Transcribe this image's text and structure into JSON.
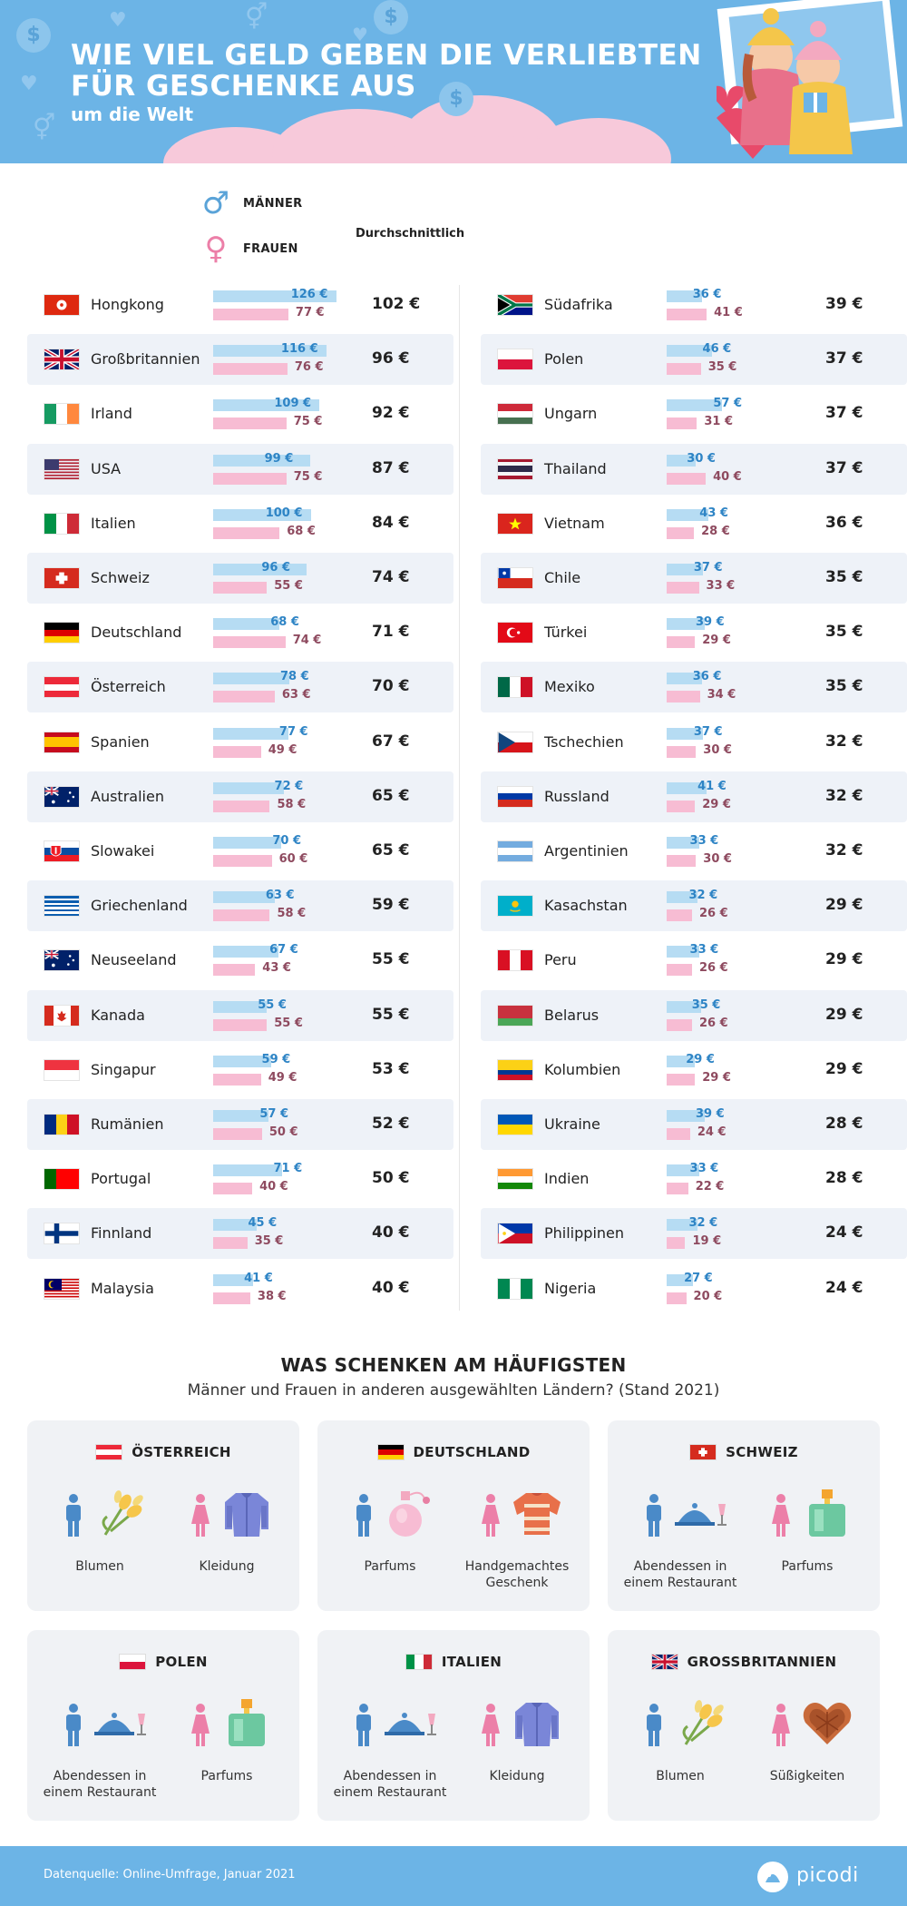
{
  "header": {
    "title_line1": "WIE VIEL GELD GEBEN DIE VERLIEBTEN",
    "title_line2": "FÜR GESCHENKE AUS",
    "subtitle": "um die Welt"
  },
  "legend": {
    "men_label": "MÄNNER",
    "women_label": "FRAUEN",
    "average_label": "Durchschnittlich",
    "men_color": "#b6dcf3",
    "women_color": "#f7bcd3"
  },
  "chart_data": {
    "type": "bar",
    "unit": "€",
    "series": [
      {
        "name": "MÄNNER",
        "color": "#b6dcf3"
      },
      {
        "name": "FRAUEN",
        "color": "#f7bcd3"
      }
    ],
    "xlim": [
      0,
      130
    ],
    "left": [
      {
        "country": "Hongkong",
        "men": 126,
        "women": 77,
        "avg": 102,
        "flag": "hongkong"
      },
      {
        "country": "Großbritannien",
        "men": 116,
        "women": 76,
        "avg": 96,
        "flag": "uk"
      },
      {
        "country": "Irland",
        "men": 109,
        "women": 75,
        "avg": 92,
        "flag": "ireland"
      },
      {
        "country": "USA",
        "men": 99,
        "women": 75,
        "avg": 87,
        "flag": "usa"
      },
      {
        "country": "Italien",
        "men": 100,
        "women": 68,
        "avg": 84,
        "flag": "italy"
      },
      {
        "country": "Schweiz",
        "men": 96,
        "women": 55,
        "avg": 74,
        "flag": "switzerland"
      },
      {
        "country": "Deutschland",
        "men": 68,
        "women": 74,
        "avg": 71,
        "flag": "germany"
      },
      {
        "country": "Österreich",
        "men": 78,
        "women": 63,
        "avg": 70,
        "flag": "austria"
      },
      {
        "country": "Spanien",
        "men": 77,
        "women": 49,
        "avg": 67,
        "flag": "spain"
      },
      {
        "country": "Australien",
        "men": 72,
        "women": 58,
        "avg": 65,
        "flag": "australia"
      },
      {
        "country": "Slowakei",
        "men": 70,
        "women": 60,
        "avg": 65,
        "flag": "slovakia"
      },
      {
        "country": "Griechenland",
        "men": 63,
        "women": 58,
        "avg": 59,
        "flag": "greece"
      },
      {
        "country": "Neuseeland",
        "men": 67,
        "women": 43,
        "avg": 55,
        "flag": "newzealand"
      },
      {
        "country": "Kanada",
        "men": 55,
        "women": 55,
        "avg": 55,
        "flag": "canada"
      },
      {
        "country": "Singapur",
        "men": 59,
        "women": 49,
        "avg": 53,
        "flag": "singapore"
      },
      {
        "country": "Rumänien",
        "men": 57,
        "women": 50,
        "avg": 52,
        "flag": "romania"
      },
      {
        "country": "Portugal",
        "men": 71,
        "women": 40,
        "avg": 50,
        "flag": "portugal"
      },
      {
        "country": "Finnland",
        "men": 45,
        "women": 35,
        "avg": 40,
        "flag": "finland"
      },
      {
        "country": "Malaysia",
        "men": 41,
        "women": 38,
        "avg": 40,
        "flag": "malaysia"
      }
    ],
    "right": [
      {
        "country": "Südafrika",
        "men": 36,
        "women": 41,
        "avg": 39,
        "flag": "southafrica"
      },
      {
        "country": "Polen",
        "men": 46,
        "women": 35,
        "avg": 37,
        "flag": "poland"
      },
      {
        "country": "Ungarn",
        "men": 57,
        "women": 31,
        "avg": 37,
        "flag": "hungary"
      },
      {
        "country": "Thailand",
        "men": 30,
        "women": 40,
        "avg": 37,
        "flag": "thailand"
      },
      {
        "country": "Vietnam",
        "men": 43,
        "women": 28,
        "avg": 36,
        "flag": "vietnam"
      },
      {
        "country": "Chile",
        "men": 37,
        "women": 33,
        "avg": 35,
        "flag": "chile"
      },
      {
        "country": "Türkei",
        "men": 39,
        "women": 29,
        "avg": 35,
        "flag": "turkey"
      },
      {
        "country": "Mexiko",
        "men": 36,
        "women": 34,
        "avg": 35,
        "flag": "mexico"
      },
      {
        "country": "Tschechien",
        "men": 37,
        "women": 30,
        "avg": 32,
        "flag": "czech"
      },
      {
        "country": "Russland",
        "men": 41,
        "women": 29,
        "avg": 32,
        "flag": "russia"
      },
      {
        "country": "Argentinien",
        "men": 33,
        "women": 30,
        "avg": 32,
        "flag": "argentina"
      },
      {
        "country": "Kasachstan",
        "men": 32,
        "women": 26,
        "avg": 29,
        "flag": "kazakhstan"
      },
      {
        "country": "Peru",
        "men": 33,
        "women": 26,
        "avg": 29,
        "flag": "peru"
      },
      {
        "country": "Belarus",
        "men": 35,
        "women": 26,
        "avg": 29,
        "flag": "belarus"
      },
      {
        "country": "Kolumbien",
        "men": 29,
        "women": 29,
        "avg": 29,
        "flag": "colombia"
      },
      {
        "country": "Ukraine",
        "men": 39,
        "women": 24,
        "avg": 28,
        "flag": "ukraine"
      },
      {
        "country": "Indien",
        "men": 33,
        "women": 22,
        "avg": 28,
        "flag": "india"
      },
      {
        "country": "Philippinen",
        "men": 32,
        "women": 19,
        "avg": 24,
        "flag": "philippines"
      },
      {
        "country": "Nigeria",
        "men": 27,
        "women": 20,
        "avg": 24,
        "flag": "nigeria"
      }
    ]
  },
  "gifts": {
    "title": "WAS SCHENKEN AM HÄUFIGSTEN",
    "subtitle": "Männer und Frauen in anderen ausgewählten Ländern? (Stand 2021)",
    "cards": [
      {
        "country": "ÖSTERREICH",
        "flag": "austria",
        "men_gift": "Blumen",
        "men_icon": "flowers-icon",
        "women_gift": "Kleidung",
        "women_icon": "jacket-icon"
      },
      {
        "country": "DEUTSCHLAND",
        "flag": "germany",
        "men_gift": "Parfums",
        "men_icon": "perfume-pink-icon",
        "women_gift": "Handgemachtes Geschenk",
        "women_icon": "sweater-icon"
      },
      {
        "country": "SCHWEIZ",
        "flag": "switzerland",
        "men_gift": "Abendessen in einem Restaurant",
        "men_icon": "dinner-icon",
        "women_gift": "Parfums",
        "women_icon": "perfume-green-icon"
      },
      {
        "country": "POLEN",
        "flag": "poland",
        "men_gift": "Abendessen in einem Restaurant",
        "men_icon": "dinner-icon",
        "women_gift": "Parfums",
        "women_icon": "perfume-green-icon"
      },
      {
        "country": "ITALIEN",
        "flag": "italy",
        "men_gift": "Abendessen in einem Restaurant",
        "men_icon": "dinner-icon",
        "women_gift": "Kleidung",
        "women_icon": "jacket-icon"
      },
      {
        "country": "GROSSBRITANNIEN",
        "flag": "uk",
        "men_gift": "Blumen",
        "men_icon": "flowers-icon",
        "women_gift": "Süßigkeiten",
        "women_icon": "chocolate-heart-icon"
      }
    ]
  },
  "footer": {
    "source": "Datenquelle: Online-Umfrage, Januar 2021",
    "logo": "picodi"
  },
  "colors": {
    "header_bg": "#6cb4e6",
    "men_value": "#2e84c5",
    "women_value": "#8e4a5f",
    "row_alt": "#eef2f8"
  }
}
